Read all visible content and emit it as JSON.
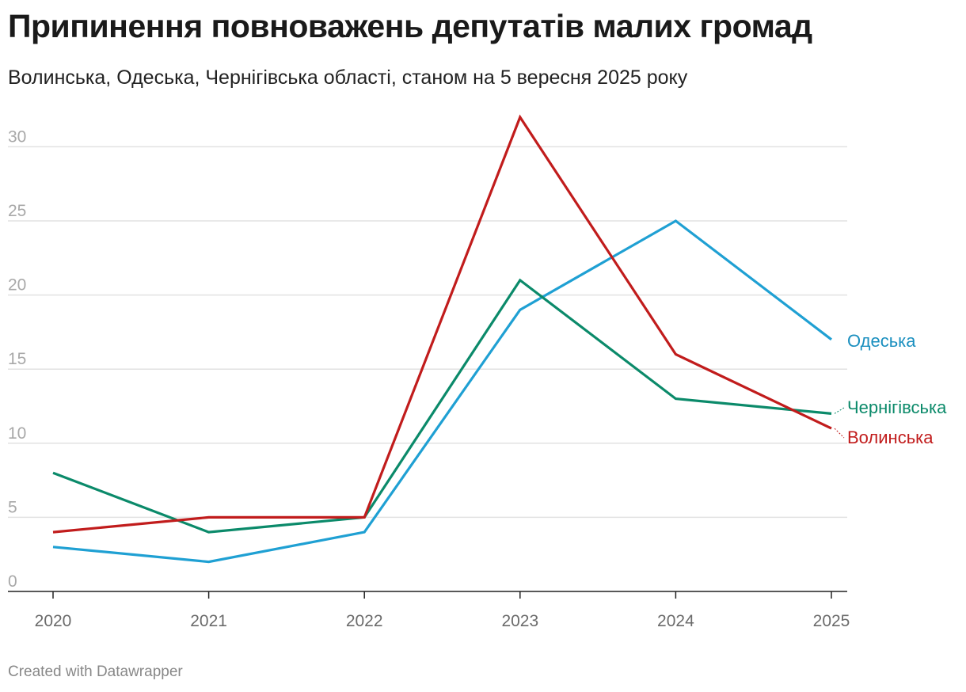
{
  "header": {
    "title": "Припинення повноважень депутатів малих громад",
    "subtitle": "Волинська, Одеська, Чернігівська області, станом на 5 вересня 2025 року"
  },
  "footer": {
    "credit": "Created with Datawrapper"
  },
  "chart_data": {
    "type": "line",
    "title": "Припинення повноважень депутатів малих громад",
    "subtitle": "Волинська, Одеська, Чернігівська області, станом на 5 вересня 2025 року",
    "xlabel": "",
    "ylabel": "",
    "x": [
      "2020",
      "2021",
      "2022",
      "2023",
      "2024",
      "2025"
    ],
    "ylim": [
      0,
      32
    ],
    "yticks": [
      0,
      5,
      10,
      15,
      20,
      25,
      30
    ],
    "grid": true,
    "legend": "direct labels at right end of lines",
    "series": [
      {
        "name": "Одеська",
        "color": "#1fa0d3",
        "label_color": "#1a8fbf",
        "values": [
          3,
          2,
          4,
          19,
          25,
          17
        ]
      },
      {
        "name": "Чернігівська",
        "color": "#0b8a6a",
        "label_color": "#0b8a6a",
        "values": [
          8,
          4,
          5,
          21,
          13,
          12
        ]
      },
      {
        "name": "Волинська",
        "color": "#c11c1c",
        "label_color": "#c11c1c",
        "values": [
          4,
          5,
          5,
          32,
          16,
          11
        ]
      }
    ]
  }
}
